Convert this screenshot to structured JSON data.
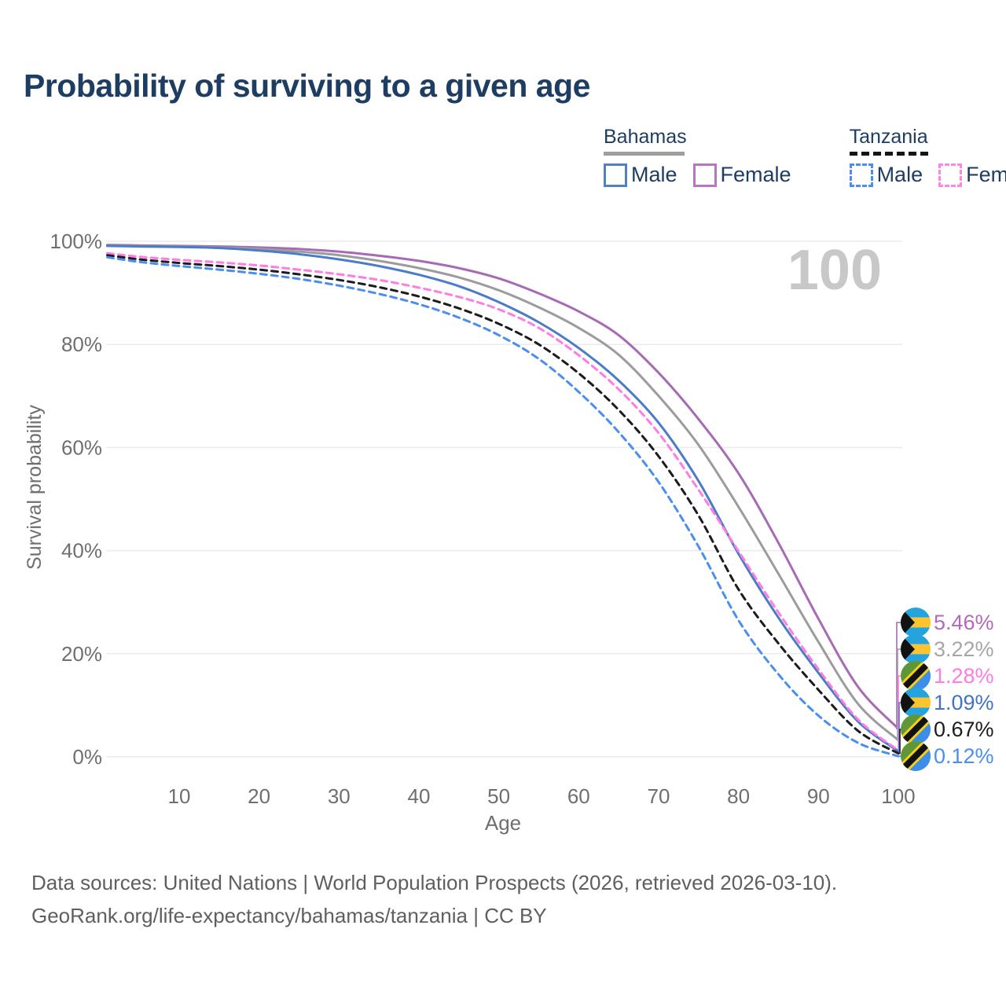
{
  "title": "Probability of surviving to a given age",
  "legend": {
    "groups": [
      {
        "country": "Bahamas",
        "line_style": "solid",
        "underline_color": "#9e9e9e",
        "items": [
          {
            "label": "Male",
            "color": "#5580c0",
            "dashed": false
          },
          {
            "label": "Female",
            "color": "#b578bc",
            "dashed": false
          }
        ]
      },
      {
        "country": "Tanzania",
        "line_style": "dashed",
        "underline_color": "#151515",
        "items": [
          {
            "label": "Male",
            "color": "#4a8ff0",
            "dashed": true
          },
          {
            "label": "Female",
            "color": "#ff87e3",
            "dashed": true
          }
        ]
      }
    ]
  },
  "watermark": "100",
  "chart_data": {
    "type": "line",
    "title": "Probability of surviving to a given age",
    "xlabel": "Age",
    "ylabel": "Survival probability",
    "xlim": [
      0,
      100
    ],
    "ylim": [
      0,
      100
    ],
    "grid": "horizontal",
    "x_ticks": [
      10,
      20,
      30,
      40,
      50,
      60,
      70,
      80,
      90,
      100
    ],
    "y_ticks": [
      {
        "value": 100,
        "label": "100%"
      },
      {
        "value": 80,
        "label": "80%"
      },
      {
        "value": 60,
        "label": "60%"
      },
      {
        "value": 40,
        "label": "40%"
      },
      {
        "value": 20,
        "label": "20%"
      },
      {
        "value": 0,
        "label": "0%"
      }
    ],
    "x": [
      1,
      5,
      10,
      15,
      20,
      25,
      30,
      35,
      40,
      45,
      50,
      55,
      60,
      65,
      70,
      75,
      80,
      85,
      90,
      95,
      100
    ],
    "series": [
      {
        "name": "Bahamas — Female",
        "country": "Bahamas",
        "sex": "Female",
        "color": "#a76ab4",
        "dashed": false,
        "end_value": "5.46%",
        "values": [
          99.3,
          99.2,
          99.1,
          99.0,
          98.8,
          98.5,
          98.0,
          97.2,
          96.2,
          94.8,
          92.8,
          89.9,
          86.4,
          81.8,
          74.5,
          65.5,
          55.0,
          41.5,
          26.8,
          13.5,
          5.46
        ]
      },
      {
        "name": "Bahamas",
        "country": "Bahamas",
        "sex": "Both",
        "color": "#9c9c9c",
        "dashed": false,
        "end_value": "3.22%",
        "values": [
          99.2,
          99.1,
          99.0,
          98.8,
          98.5,
          98.0,
          97.3,
          96.2,
          94.8,
          93.0,
          90.5,
          87.2,
          83.2,
          78.0,
          70.0,
          60.5,
          48.5,
          35.5,
          22.3,
          10.2,
          3.22
        ]
      },
      {
        "name": "Bahamas — Male",
        "country": "Bahamas",
        "sex": "Male",
        "color": "#4a7cc7",
        "dashed": false,
        "end_value": "1.09%",
        "values": [
          99.1,
          99.0,
          98.9,
          98.7,
          98.2,
          97.5,
          96.5,
          95.2,
          93.5,
          91.3,
          88.2,
          84.3,
          79.3,
          73.0,
          64.8,
          53.5,
          39.4,
          27.0,
          16.3,
          6.8,
          1.09
        ]
      },
      {
        "name": "Tanzania — Female",
        "country": "Tanzania",
        "sex": "Female",
        "color": "#ff7ce0",
        "dashed": true,
        "end_value": "1.28%",
        "values": [
          97.7,
          97.0,
          96.4,
          95.9,
          95.3,
          94.5,
          93.6,
          92.5,
          91.0,
          89.2,
          86.8,
          83.2,
          77.9,
          71.3,
          62.8,
          51.8,
          39.9,
          28.0,
          17.0,
          7.2,
          1.28
        ]
      },
      {
        "name": "Tanzania",
        "country": "Tanzania",
        "sex": "Both",
        "color": "#1c1c1c",
        "dashed": true,
        "end_value": "0.67%",
        "values": [
          97.3,
          96.5,
          95.8,
          95.2,
          94.5,
          93.6,
          92.5,
          91.1,
          89.3,
          87.0,
          84.0,
          80.0,
          74.4,
          67.3,
          58.3,
          46.8,
          32.5,
          22.0,
          13.0,
          5.0,
          0.67
        ]
      },
      {
        "name": "Tanzania — Male",
        "country": "Tanzania",
        "sex": "Male",
        "color": "#4a8ff0",
        "dashed": true,
        "end_value": "0.12%",
        "values": [
          96.9,
          96.0,
          95.2,
          94.5,
          93.7,
          92.7,
          91.4,
          89.8,
          87.8,
          85.2,
          81.8,
          77.2,
          70.8,
          63.0,
          53.3,
          40.8,
          26.5,
          16.0,
          8.0,
          2.7,
          0.12
        ]
      }
    ],
    "legend_position": "top-right"
  },
  "end_labels": [
    {
      "value": "5.46%",
      "series_index": 0,
      "flag": "bahamas",
      "color": "#b36ab8"
    },
    {
      "value": "3.22%",
      "series_index": 1,
      "flag": "bahamas",
      "color": "#a6a6a6"
    },
    {
      "value": "1.28%",
      "series_index": 3,
      "flag": "tanzania",
      "color": "#ff7ce0"
    },
    {
      "value": "1.09%",
      "series_index": 2,
      "flag": "bahamas",
      "color": "#4273c4"
    },
    {
      "value": "0.67%",
      "series_index": 4,
      "flag": "tanzania",
      "color": "#1c1c1c"
    },
    {
      "value": "0.12%",
      "series_index": 5,
      "flag": "tanzania",
      "color": "#4a8ff0"
    }
  ],
  "footer": {
    "line1": "Data sources: United Nations | World Population Prospects (2026, retrieved 2026-03-10).",
    "line2": "GeoRank.org/life-expectancy/bahamas/tanzania | CC BY"
  }
}
